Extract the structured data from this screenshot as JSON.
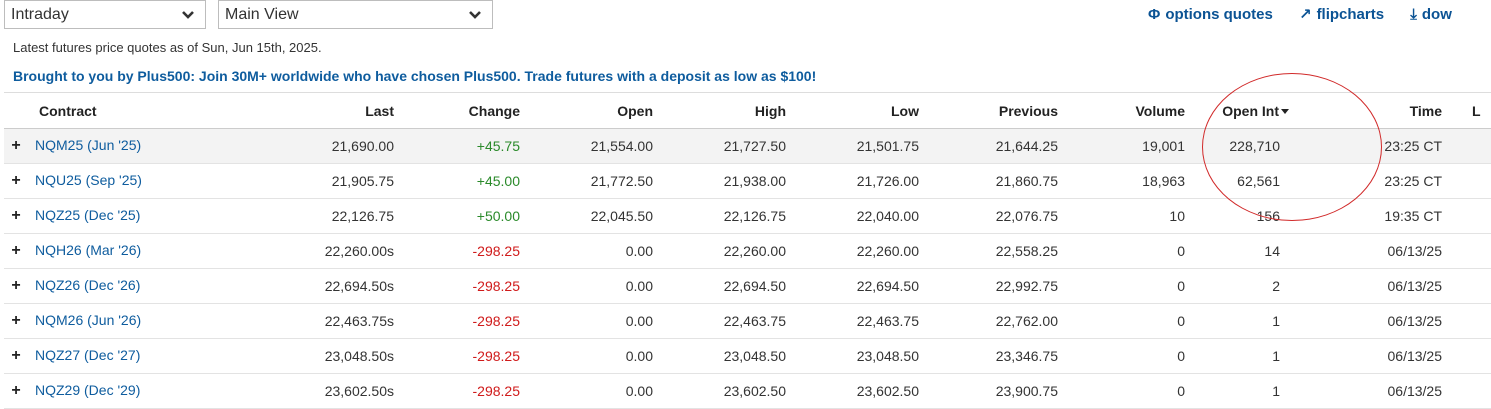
{
  "controls": {
    "period_select": "Intraday",
    "view_select": "Main View"
  },
  "toplinks": [
    {
      "icon": "phi-icon",
      "glyph": "Φ",
      "label": "options quotes"
    },
    {
      "icon": "chart-trend-icon",
      "glyph": "↗",
      "label": "flipcharts"
    },
    {
      "icon": "download-icon",
      "glyph": "⤓",
      "label": "dow"
    }
  ],
  "asof": "Latest futures price quotes as of Sun, Jun 15th, 2025.",
  "promo": "Brought to you by Plus500: Join 30M+ worldwide who have chosen Plus500. Trade futures with a deposit as low as $100!",
  "table": {
    "headers": [
      "Contract",
      "Last",
      "Change",
      "Open",
      "High",
      "Low",
      "Previous",
      "Volume",
      "Open Int",
      "Time",
      "L"
    ],
    "rows": [
      {
        "contract": "NQM25 (Jun '25)",
        "last": "21,690.00",
        "change": "+45.75",
        "open": "21,554.00",
        "high": "21,727.50",
        "low": "21,501.75",
        "previous": "21,644.25",
        "volume": "19,001",
        "open_int": "228,710",
        "time": "23:25 CT"
      },
      {
        "contract": "NQU25 (Sep '25)",
        "last": "21,905.75",
        "change": "+45.00",
        "open": "21,772.50",
        "high": "21,938.00",
        "low": "21,726.00",
        "previous": "21,860.75",
        "volume": "18,963",
        "open_int": "62,561",
        "time": "23:25 CT"
      },
      {
        "contract": "NQZ25 (Dec '25)",
        "last": "22,126.75",
        "change": "+50.00",
        "open": "22,045.50",
        "high": "22,126.75",
        "low": "22,040.00",
        "previous": "22,076.75",
        "volume": "10",
        "open_int": "156",
        "time": "19:35 CT"
      },
      {
        "contract": "NQH26 (Mar '26)",
        "last": "22,260.00s",
        "change": "-298.25",
        "open": "0.00",
        "high": "22,260.00",
        "low": "22,260.00",
        "previous": "22,558.25",
        "volume": "0",
        "open_int": "14",
        "time": "06/13/25"
      },
      {
        "contract": "NQZ26 (Dec '26)",
        "last": "22,694.50s",
        "change": "-298.25",
        "open": "0.00",
        "high": "22,694.50",
        "low": "22,694.50",
        "previous": "22,992.75",
        "volume": "0",
        "open_int": "2",
        "time": "06/13/25"
      },
      {
        "contract": "NQM26 (Jun '26)",
        "last": "22,463.75s",
        "change": "-298.25",
        "open": "0.00",
        "high": "22,463.75",
        "low": "22,463.75",
        "previous": "22,762.00",
        "volume": "0",
        "open_int": "1",
        "time": "06/13/25"
      },
      {
        "contract": "NQZ27 (Dec '27)",
        "last": "23,048.50s",
        "change": "-298.25",
        "open": "0.00",
        "high": "23,048.50",
        "low": "23,048.50",
        "previous": "23,346.75",
        "volume": "0",
        "open_int": "1",
        "time": "06/13/25"
      },
      {
        "contract": "NQZ29 (Dec '29)",
        "last": "23,602.50s",
        "change": "-298.25",
        "open": "0.00",
        "high": "23,602.50",
        "low": "23,602.50",
        "previous": "23,900.75",
        "volume": "0",
        "open_int": "1",
        "time": "06/13/25"
      }
    ]
  },
  "colors": {
    "link": "#0e5c9e",
    "positive": "#2a8a2a",
    "negative": "#d01b1b",
    "annotation": "#d12a2a"
  }
}
